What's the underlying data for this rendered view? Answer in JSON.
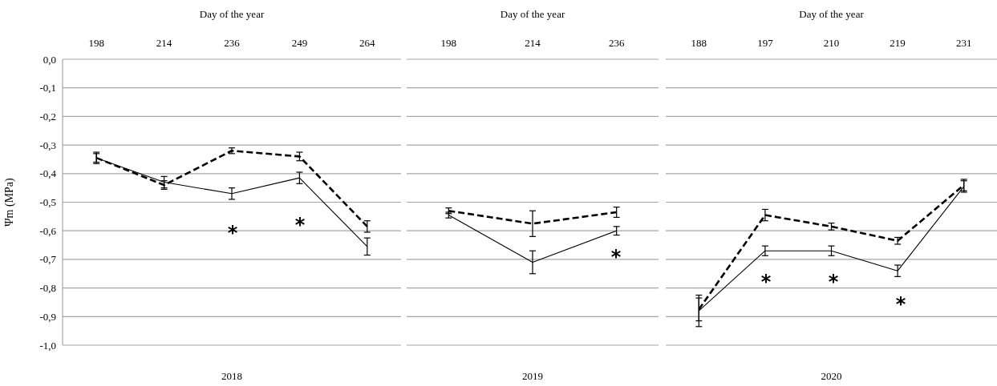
{
  "chart_data": [
    {
      "type": "line",
      "title": "Day of the year",
      "xlabel": "2018",
      "ylabel": "Ψm (MPa)",
      "categories": [
        "198",
        "214",
        "236",
        "249",
        "264"
      ],
      "ylim": [
        -1,
        0
      ],
      "yticks": [
        {
          "value": 0,
          "label": "0,0"
        },
        {
          "value": -0.1,
          "label": "-0,1"
        },
        {
          "value": -0.2,
          "label": "-0,2"
        },
        {
          "value": -0.3,
          "label": "-0,3"
        },
        {
          "value": -0.4,
          "label": "-0,4"
        },
        {
          "value": -0.5,
          "label": "-0,5"
        },
        {
          "value": -0.6,
          "label": "-0,6"
        },
        {
          "value": -0.7,
          "label": "-0,7"
        },
        {
          "value": -0.8,
          "label": "-0,8"
        },
        {
          "value": -0.9,
          "label": "-0,9"
        },
        {
          "value": -1,
          "label": "-1,0"
        }
      ],
      "grid": "y",
      "series": [
        {
          "color": "#000000",
          "line_style": "solid",
          "values": [
            -0.345,
            -0.43,
            -0.47,
            -0.415,
            -0.655
          ],
          "errors": [
            0.02,
            0.02,
            0.02,
            0.02,
            0.03
          ]
        },
        {
          "color": "#000000",
          "line_style": "dashed",
          "values": [
            -0.345,
            -0.44,
            -0.32,
            -0.34,
            -0.585
          ],
          "errors": [
            0.015,
            0.015,
            0.01,
            0.015,
            0.02
          ]
        }
      ],
      "annotations": [
        "*",
        "*"
      ]
    },
    {
      "type": "line",
      "title": "Day of the year",
      "xlabel": "2019",
      "categories": [
        "198",
        "214",
        "236"
      ],
      "ylim": [
        -1,
        0
      ],
      "yticks": [
        0,
        -0.1,
        -0.2,
        -0.3,
        -0.4,
        -0.5,
        -0.6,
        -0.7,
        -0.8,
        -0.9,
        -1
      ],
      "tick_labels": "x",
      "grid": "y",
      "series": [
        {
          "color": "#000000",
          "line_style": "solid",
          "values": [
            -0.545,
            -0.71,
            -0.6
          ],
          "errors": [
            0.01,
            0.04,
            0.015
          ]
        },
        {
          "color": "#000000",
          "line_style": "dashed",
          "values": [
            -0.53,
            -0.575,
            -0.535
          ],
          "errors": [
            0.01,
            0.045,
            0.018
          ]
        }
      ],
      "annotations": [
        "*"
      ]
    },
    {
      "type": "line",
      "title": "Day of the year",
      "xlabel": "2020",
      "categories": [
        "188",
        "197",
        "210",
        "219",
        "231"
      ],
      "ylim": [
        -1,
        0
      ],
      "yticks": [
        0,
        -0.1,
        -0.2,
        -0.3,
        -0.4,
        -0.5,
        -0.6,
        -0.7,
        -0.8,
        -0.9,
        -1
      ],
      "tick_labels": "x",
      "grid": "y",
      "series": [
        {
          "color": "#000000",
          "line_style": "solid",
          "values": [
            -0.88,
            -0.67,
            -0.67,
            -0.74,
            -0.445
          ],
          "errors": [
            0.055,
            0.017,
            0.017,
            0.02,
            0.02
          ]
        },
        {
          "color": "#000000",
          "line_style": "dashed",
          "values": [
            -0.875,
            -0.545,
            -0.585,
            -0.635,
            -0.44
          ],
          "errors": [
            0.04,
            0.02,
            0.012,
            0.012,
            0.02
          ]
        }
      ],
      "annotations": [
        "*",
        "*",
        "*"
      ]
    }
  ]
}
